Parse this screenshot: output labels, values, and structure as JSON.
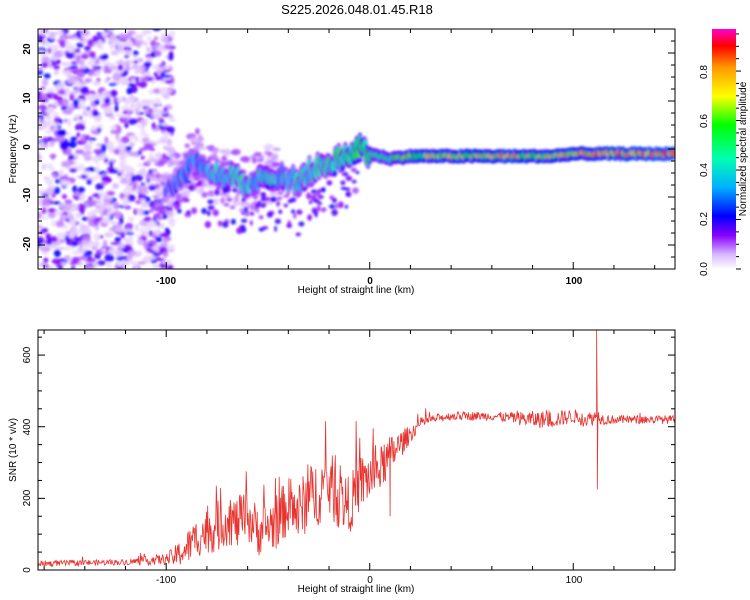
{
  "chart_data": [
    {
      "type": "heatmap",
      "title": "S225.2026.048.01.45.R18",
      "xlabel": "Height of straight line (km)",
      "ylabel": "Frequency (Hz)",
      "xlim": [
        -163,
        150
      ],
      "ylim": [
        -25,
        25
      ],
      "xticks": [
        "-100",
        "0",
        "100"
      ],
      "yticks": [
        "20",
        "10",
        "0",
        "-10",
        "-20"
      ],
      "colorbar": {
        "label": "Normalized spectral amplitude",
        "ticks": [
          "0.0",
          "0.2",
          "0.4",
          "0.6",
          "0.8"
        ],
        "range": [
          0,
          0.97
        ]
      },
      "ridge": {
        "x": [
          -100,
          -95,
          -90,
          -85,
          -80,
          -75,
          -70,
          -65,
          -60,
          -55,
          -50,
          -45,
          -40,
          -35,
          -30,
          -25,
          -20,
          -15,
          -10,
          -5,
          0,
          10,
          20,
          30,
          40,
          50,
          60,
          70,
          80,
          90,
          100,
          110,
          120,
          130,
          140,
          150
        ],
        "freq": [
          -8,
          -7,
          -4,
          -2,
          -5,
          -5,
          -6,
          -6,
          -8,
          -7,
          -5,
          -6,
          -6,
          -7,
          -5,
          -4,
          -3,
          -2,
          -1,
          0,
          -1,
          -2,
          -1.5,
          -1.5,
          -1.5,
          -1.5,
          -1.5,
          -1.5,
          -1.5,
          -1.5,
          -1,
          -1,
          -1,
          -1,
          -1,
          -1
        ],
        "amplitude": [
          0.25,
          0.3,
          0.4,
          0.35,
          0.4,
          0.45,
          0.45,
          0.5,
          0.45,
          0.45,
          0.5,
          0.45,
          0.4,
          0.5,
          0.45,
          0.5,
          0.5,
          0.55,
          0.6,
          0.65,
          0.6,
          0.6,
          0.7,
          0.75,
          0.75,
          0.75,
          0.8,
          0.9,
          0.7,
          0.8,
          0.8,
          0.85,
          0.9,
          0.9,
          0.95,
          0.95
        ]
      }
    },
    {
      "type": "line",
      "xlabel": "Height of straight line (km)",
      "ylabel": "SNR (10 * v/v)",
      "xlim": [
        -163,
        150
      ],
      "ylim": [
        0,
        670
      ],
      "xticks": [
        "-100",
        "0",
        "100"
      ],
      "yticks": [
        "0",
        "200",
        "400",
        "600"
      ],
      "series": [
        {
          "name": "SNR",
          "color": "#e8332e",
          "x": [
            -163,
            -140,
            -120,
            -100,
            -95,
            -90,
            -85,
            -80,
            -75,
            -70,
            -65,
            -60,
            -55,
            -50,
            -45,
            -40,
            -35,
            -30,
            -25,
            -20,
            -15,
            -10,
            -5,
            0,
            5,
            10,
            15,
            20,
            25,
            30,
            40,
            50,
            60,
            70,
            80,
            90,
            100,
            105,
            110,
            112,
            115,
            120,
            130,
            140,
            150
          ],
          "y": [
            18,
            20,
            22,
            30,
            40,
            60,
            90,
            110,
            120,
            140,
            130,
            150,
            110,
            120,
            140,
            180,
            160,
            200,
            220,
            240,
            200,
            180,
            240,
            260,
            280,
            320,
            350,
            380,
            410,
            420,
            430,
            430,
            430,
            425,
            420,
            420,
            430,
            420,
            425,
            430,
            420,
            420,
            420,
            420,
            420
          ],
          "noise": [
            10,
            10,
            10,
            20,
            40,
            60,
            70,
            80,
            90,
            90,
            90,
            90,
            90,
            90,
            100,
            100,
            110,
            110,
            120,
            120,
            110,
            100,
            100,
            90,
            80,
            70,
            50,
            30,
            20,
            15,
            15,
            15,
            15,
            20,
            30,
            30,
            25,
            25,
            25,
            25,
            20,
            15,
            15,
            15,
            15
          ]
        }
      ],
      "spikes": [
        {
          "x": 111.5,
          "y": 670
        },
        {
          "x": 111.8,
          "y": 225
        },
        {
          "x": 10,
          "y": 150
        }
      ]
    }
  ]
}
